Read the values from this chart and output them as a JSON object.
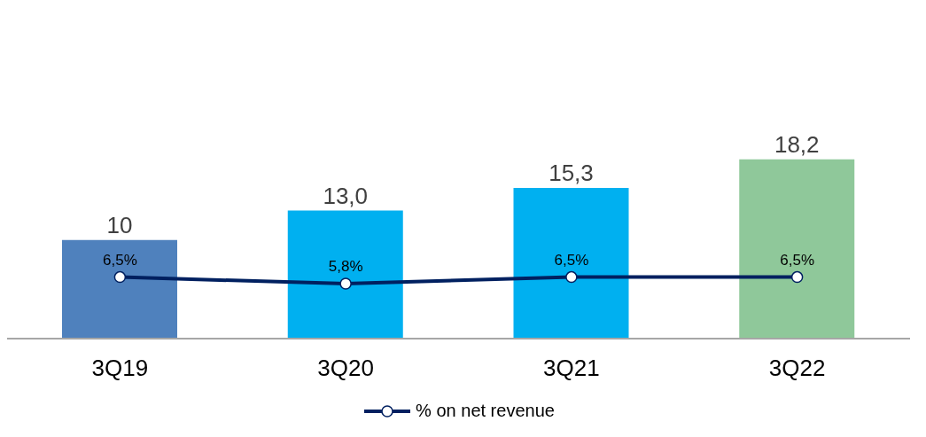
{
  "chart_data": {
    "type": "bar",
    "categories": [
      "3Q19",
      "3Q20",
      "3Q21",
      "3Q22"
    ],
    "series": [
      {
        "colors": [
          "#4f81bd",
          "#00b0f0",
          "#00b0f0",
          "#8fc89a"
        ],
        "values": [
          10,
          13.0,
          15.3,
          18.2
        ],
        "value_labels": [
          "10",
          "13,0",
          "15,3",
          "18,2"
        ]
      },
      {
        "type": "line",
        "axis": "y2",
        "name": "% on net revenue",
        "color": "#002060",
        "values": [
          6.5,
          5.8,
          6.5,
          6.5
        ],
        "value_labels": [
          "6,5%",
          "5,8%",
          "6,5%",
          "6,5%"
        ]
      }
    ],
    "marker": "circle",
    "legend": "bottom",
    "tick_labels": "x"
  }
}
